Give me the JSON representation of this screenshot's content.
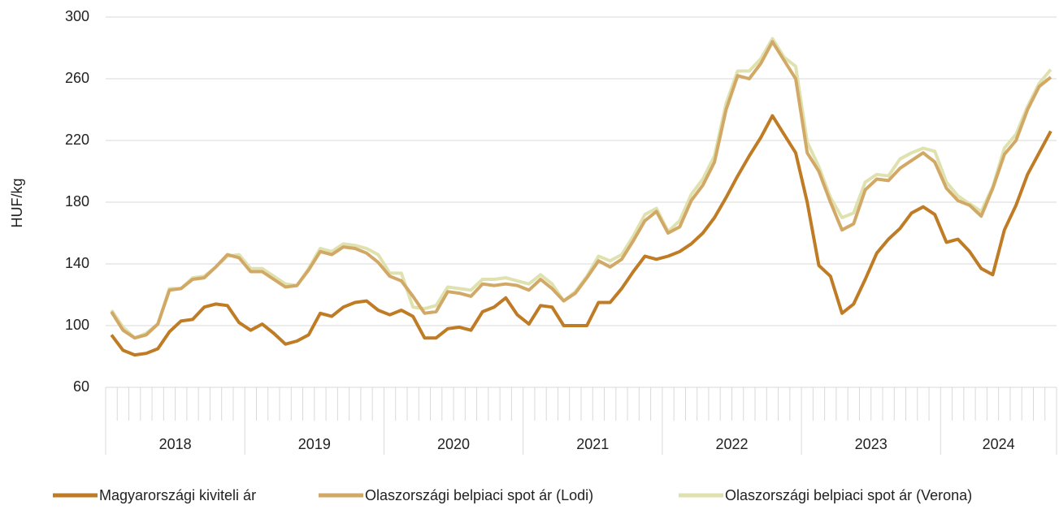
{
  "chart_data": {
    "type": "line",
    "y_label": "HUF/kg",
    "categories": [
      null,
      null,
      null,
      null,
      null,
      null,
      null,
      null,
      null,
      null,
      null,
      null,
      null,
      null,
      null,
      null,
      null,
      null,
      null,
      null,
      null,
      null,
      null,
      null,
      null,
      null,
      null,
      null,
      null,
      null,
      null,
      null,
      null,
      null,
      null,
      null,
      null,
      null,
      null,
      null,
      null,
      null,
      null,
      null,
      null,
      null,
      null,
      null,
      null,
      null,
      null,
      null,
      null,
      null,
      null,
      null,
      null,
      null,
      null,
      null,
      null,
      null,
      null,
      null,
      null,
      null,
      null,
      null,
      null,
      null,
      null,
      null,
      null,
      null,
      null,
      null,
      null,
      null,
      null,
      null,
      null,
      null
    ],
    "groups": [
      {
        "label": "2018",
        "size": 12
      },
      {
        "label": "2019",
        "size": 12
      },
      {
        "label": "2020",
        "size": 12
      },
      {
        "label": "2021",
        "size": 12
      },
      {
        "label": "2022",
        "size": 12
      },
      {
        "label": "2023",
        "size": 12
      },
      {
        "label": "2024",
        "size": 10
      }
    ],
    "ylim": [
      60,
      300
    ],
    "yticks": [
      60,
      100,
      140,
      180,
      220,
      260,
      300
    ],
    "grid": true,
    "series": [
      {
        "name": "Magyarországi kiviteli ár",
        "color": "#c07b25",
        "values": [
          94,
          84,
          81,
          82,
          85,
          96,
          103,
          104,
          112,
          114,
          113,
          102,
          97,
          101,
          95,
          88,
          90,
          94,
          108,
          106,
          112,
          115,
          116,
          110,
          107,
          110,
          106,
          92,
          92,
          98,
          99,
          97,
          109,
          112,
          118,
          107,
          101,
          113,
          112,
          100,
          100,
          100,
          115,
          115,
          124,
          135,
          145,
          143,
          145,
          148,
          153,
          160,
          170,
          183,
          197,
          210,
          222,
          236,
          224,
          212,
          180,
          139,
          132,
          108,
          114,
          130,
          147,
          156,
          163,
          173,
          177,
          172,
          154,
          156,
          148,
          137,
          133,
          162,
          178,
          198,
          212,
          226
        ]
      },
      {
        "name": "Olaszországi belpiaci spot ár (Lodi)",
        "color": "#d2a866",
        "values": [
          109,
          97,
          92,
          94,
          101,
          123,
          124,
          130,
          131,
          138,
          146,
          144,
          135,
          135,
          130,
          125,
          126,
          136,
          148,
          146,
          151,
          150,
          147,
          141,
          132,
          129,
          119,
          108,
          109,
          122,
          121,
          119,
          127,
          126,
          127,
          126,
          123,
          130,
          124,
          116,
          121,
          131,
          142,
          138,
          143,
          155,
          168,
          174,
          160,
          164,
          181,
          191,
          206,
          240,
          262,
          260,
          270,
          284,
          272,
          260,
          212,
          200,
          180,
          162,
          166,
          188,
          195,
          194,
          202,
          207,
          212,
          206,
          189,
          181,
          178,
          171,
          189,
          211,
          220,
          240,
          255,
          261
        ]
      },
      {
        "name": "Olaszországi belpiaci spot ár (Verona)",
        "color": "#dfe2ae",
        "values": [
          110,
          99,
          92,
          95,
          101,
          124,
          124,
          131,
          132,
          138,
          145,
          146,
          137,
          137,
          132,
          127,
          126,
          137,
          150,
          148,
          153,
          152,
          150,
          146,
          134,
          134,
          112,
          111,
          113,
          125,
          124,
          123,
          130,
          130,
          131,
          129,
          127,
          133,
          127,
          116,
          122,
          132,
          145,
          142,
          146,
          158,
          172,
          176,
          161,
          168,
          185,
          195,
          210,
          244,
          265,
          265,
          273,
          286,
          274,
          268,
          219,
          203,
          183,
          170,
          173,
          193,
          198,
          197,
          208,
          212,
          215,
          213,
          193,
          184,
          179,
          174,
          190,
          215,
          224,
          242,
          257,
          266
        ]
      }
    ]
  }
}
